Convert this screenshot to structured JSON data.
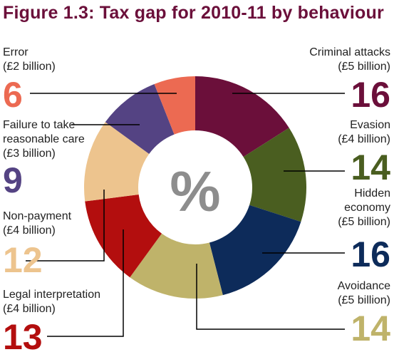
{
  "title": "Figure 1.3: Tax gap for 2010-11 by behaviour",
  "center_label": "%",
  "chart_data": {
    "type": "pie",
    "variant": "donut",
    "title": "Figure 1.3: Tax gap for 2010-11 by behaviour",
    "slices": [
      {
        "name": "Criminal attacks",
        "amount": "(£5 billion)",
        "value": 16,
        "color": "#6b0f3a"
      },
      {
        "name": "Evasion",
        "amount": "(£4 billion)",
        "value": 14,
        "color": "#4a5e20"
      },
      {
        "name": "Hidden economy",
        "amount": "(£5 billion)",
        "value": 16,
        "color": "#0d2b5a"
      },
      {
        "name": "Avoidance",
        "amount": "(£5 billion)",
        "value": 14,
        "color": "#bfb36a"
      },
      {
        "name": "Legal interpretation",
        "amount": "(£4 billion)",
        "value": 13,
        "color": "#b30e0e"
      },
      {
        "name": "Non-payment",
        "amount": "(£4 billion)",
        "value": 12,
        "color": "#edc48e"
      },
      {
        "name": "Failure to take reasonable care",
        "amount": "(£3 billion)",
        "value": 9,
        "color": "#544383"
      },
      {
        "name": "Error",
        "amount": "(£2 billion)",
        "value": 6,
        "color": "#ec6a52"
      }
    ]
  }
}
